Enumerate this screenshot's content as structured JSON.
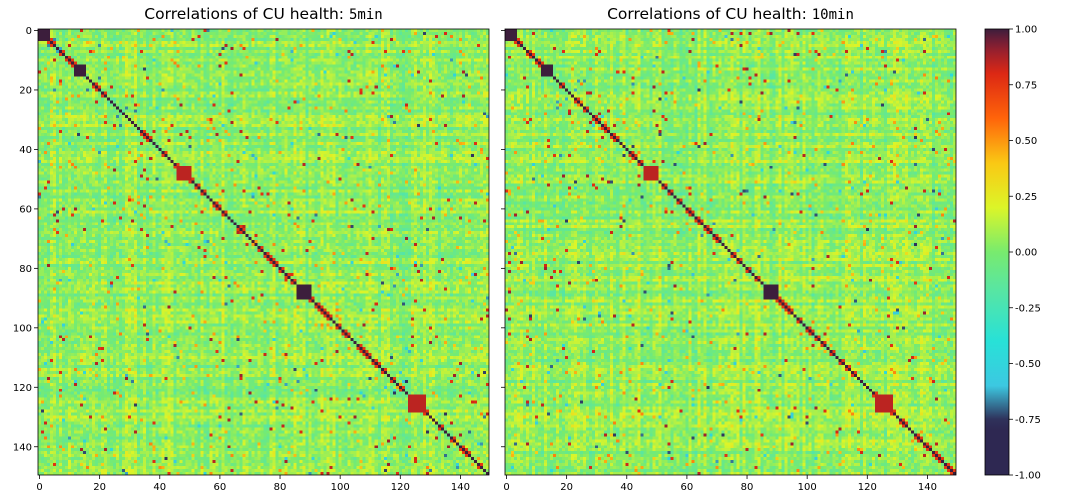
{
  "chart_data": [
    {
      "type": "heatmap",
      "title": "Correlations of CU health:",
      "title_code": "5min",
      "matrix_size": 150,
      "xlim": [
        0,
        150
      ],
      "ylim": [
        150,
        0
      ],
      "x_ticks": [
        0,
        20,
        40,
        60,
        80,
        100,
        120,
        140
      ],
      "y_ticks": [
        0,
        20,
        40,
        60,
        80,
        100,
        120,
        140
      ],
      "diagonal_value": 1.0,
      "background_value_range": [
        -0.3,
        0.35
      ],
      "strong_blocks": [
        {
          "start": 0,
          "end": 3,
          "value": 1.0
        },
        {
          "start": 12,
          "end": 15,
          "value": 1.0
        },
        {
          "start": 46,
          "end": 50,
          "value": 0.85
        },
        {
          "start": 86,
          "end": 90,
          "value": 1.0
        },
        {
          "start": 123,
          "end": 128,
          "value": 0.85
        }
      ]
    },
    {
      "type": "heatmap",
      "title": "Correlations of CU health:",
      "title_code": "10min",
      "matrix_size": 150,
      "xlim": [
        0,
        150
      ],
      "ylim": [
        150,
        0
      ],
      "x_ticks": [
        0,
        20,
        40,
        60,
        80,
        100,
        120,
        140
      ],
      "y_ticks": [
        0,
        20,
        40,
        60,
        80,
        100,
        120,
        140
      ],
      "diagonal_value": 1.0,
      "background_value_range": [
        -0.3,
        0.35
      ],
      "strong_blocks": [
        {
          "start": 0,
          "end": 3,
          "value": 1.0
        },
        {
          "start": 12,
          "end": 15,
          "value": 1.0
        },
        {
          "start": 46,
          "end": 50,
          "value": 0.85
        },
        {
          "start": 86,
          "end": 90,
          "value": 1.0
        },
        {
          "start": 123,
          "end": 128,
          "value": 0.85
        }
      ]
    }
  ],
  "colorbar": {
    "range": [
      -1.0,
      1.0
    ],
    "ticks": [
      "1.00",
      "0.75",
      "0.50",
      "0.25",
      "0.00",
      "-0.25",
      "-0.50",
      "-0.75",
      "-1.00"
    ],
    "tick_values": [
      1.0,
      0.75,
      0.5,
      0.25,
      0.0,
      -0.25,
      -0.5,
      -0.75,
      -1.0
    ]
  }
}
